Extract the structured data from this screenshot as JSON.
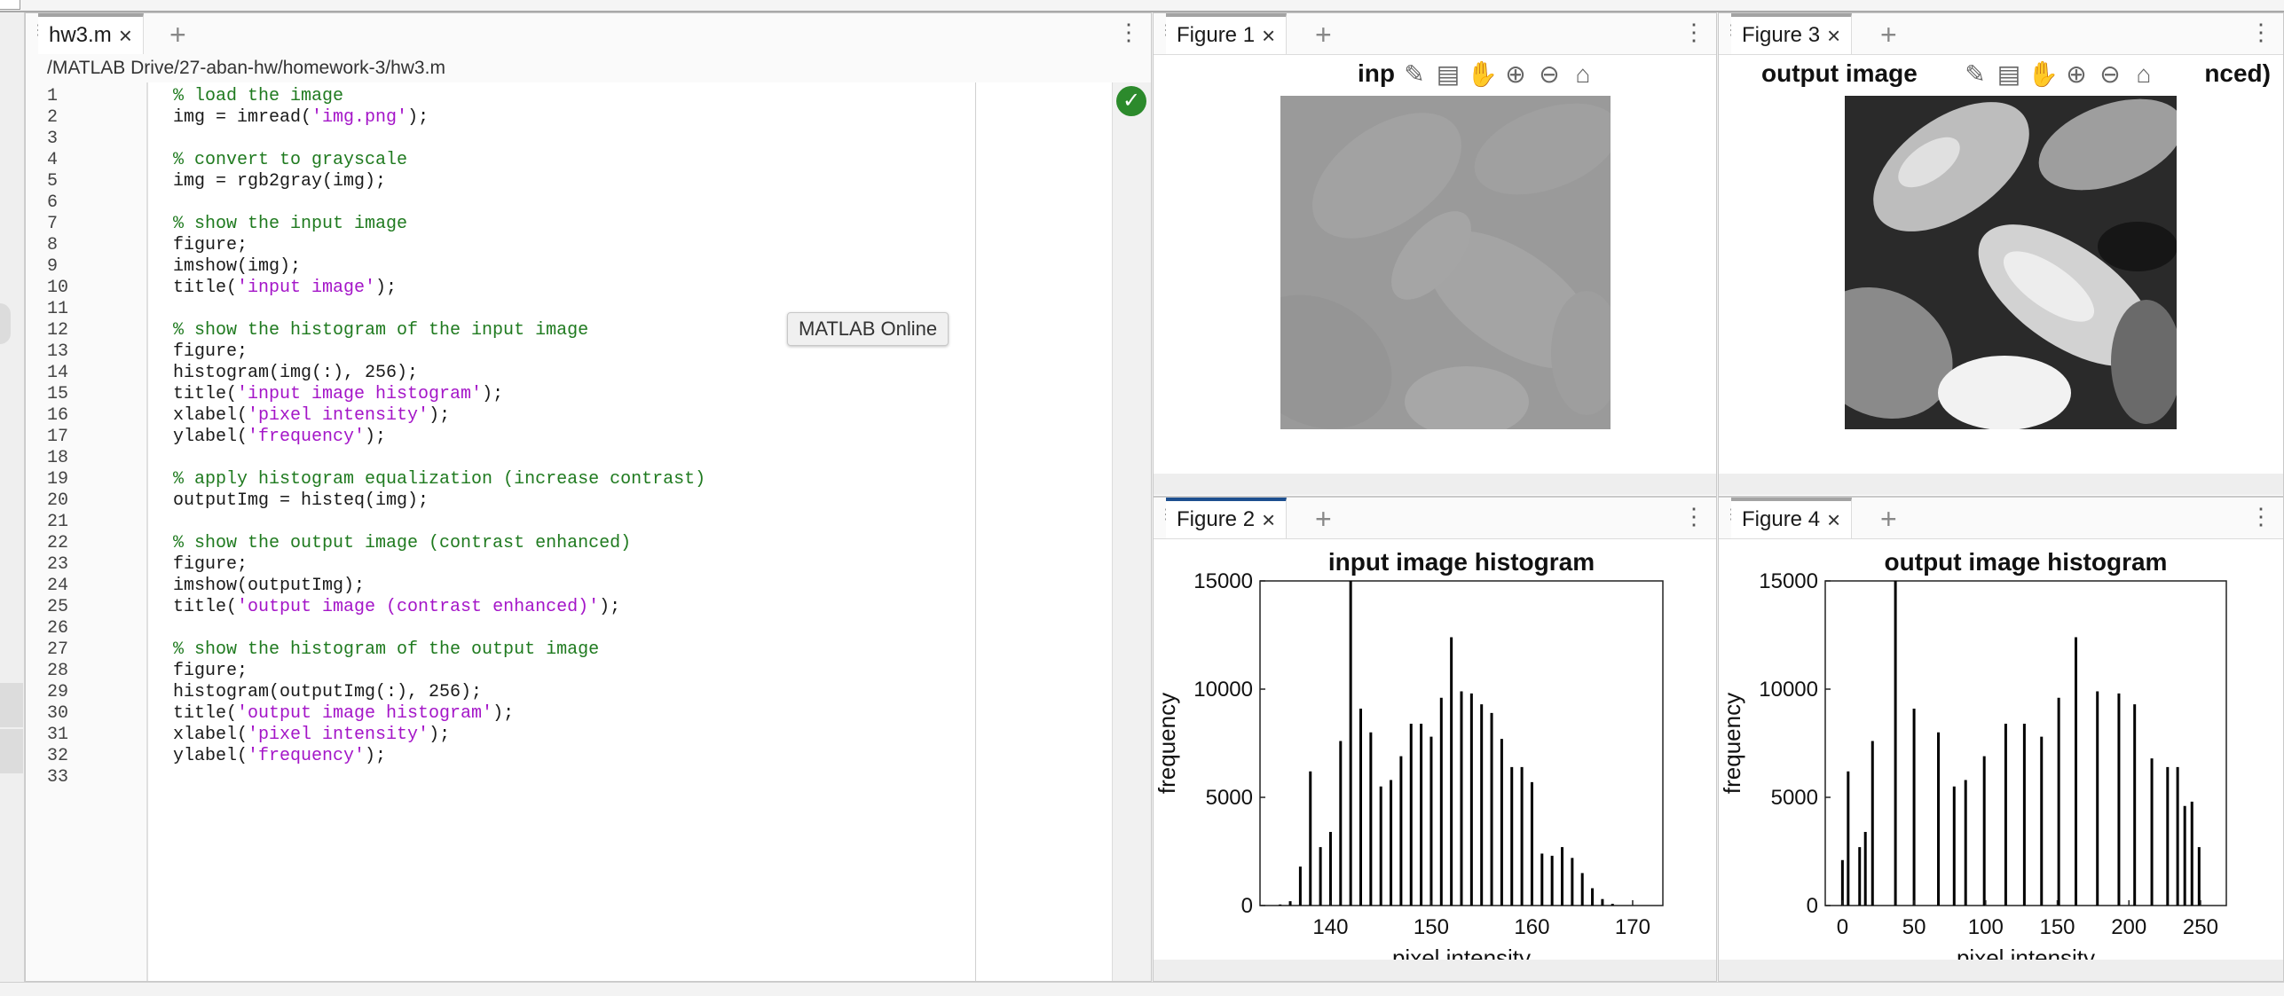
{
  "editor": {
    "tab_label": "hw3.m",
    "path": "/MATLAB Drive/27-aban-hw/homework-3/hw3.m",
    "tooltip": "MATLAB Online",
    "lines": [
      {
        "n": "1",
        "t": "% load the image",
        "k": "cm"
      },
      {
        "n": "2",
        "t": "img = imread(",
        "k": "pl",
        "s": "'img.png'",
        "e": ");"
      },
      {
        "n": "3",
        "t": "",
        "k": "pl"
      },
      {
        "n": "4",
        "t": "% convert to grayscale",
        "k": "cm"
      },
      {
        "n": "5",
        "t": "img = rgb2gray(img);",
        "k": "pl"
      },
      {
        "n": "6",
        "t": "",
        "k": "pl"
      },
      {
        "n": "7",
        "t": "% show the input image",
        "k": "cm"
      },
      {
        "n": "8",
        "t": "figure;",
        "k": "pl"
      },
      {
        "n": "9",
        "t": "imshow(img);",
        "k": "pl"
      },
      {
        "n": "10",
        "t": "title(",
        "k": "pl",
        "s": "'input image'",
        "e": ");"
      },
      {
        "n": "11",
        "t": "",
        "k": "pl"
      },
      {
        "n": "12",
        "t": "% show the histogram of the input image",
        "k": "cm"
      },
      {
        "n": "13",
        "t": "figure;",
        "k": "pl"
      },
      {
        "n": "14",
        "t": "histogram(img(:), 256);",
        "k": "pl"
      },
      {
        "n": "15",
        "t": "title(",
        "k": "pl",
        "s": "'input image histogram'",
        "e": ");"
      },
      {
        "n": "16",
        "t": "xlabel(",
        "k": "pl",
        "s": "'pixel intensity'",
        "e": ");"
      },
      {
        "n": "17",
        "t": "ylabel(",
        "k": "pl",
        "s": "'frequency'",
        "e": ");"
      },
      {
        "n": "18",
        "t": "",
        "k": "pl"
      },
      {
        "n": "19",
        "t": "% apply histogram equalization (increase contrast)",
        "k": "cm"
      },
      {
        "n": "20",
        "t": "outputImg = histeq(img);",
        "k": "pl"
      },
      {
        "n": "21",
        "t": "",
        "k": "pl"
      },
      {
        "n": "22",
        "t": "% show the output image (contrast enhanced)",
        "k": "cm"
      },
      {
        "n": "23",
        "t": "figure;",
        "k": "pl"
      },
      {
        "n": "24",
        "t": "imshow(outputImg);",
        "k": "pl"
      },
      {
        "n": "25",
        "t": "title(",
        "k": "pl",
        "s": "'output image (contrast enhanced)'",
        "e": ");"
      },
      {
        "n": "26",
        "t": "",
        "k": "pl"
      },
      {
        "n": "27",
        "t": "% show the histogram of the output image",
        "k": "cm"
      },
      {
        "n": "28",
        "t": "figure;",
        "k": "pl"
      },
      {
        "n": "29",
        "t": "histogram(outputImg(:), 256);",
        "k": "pl"
      },
      {
        "n": "30",
        "t": "title(",
        "k": "pl",
        "s": "'output image histogram'",
        "e": ");"
      },
      {
        "n": "31",
        "t": "xlabel(",
        "k": "pl",
        "s": "'pixel intensity'",
        "e": ");"
      },
      {
        "n": "32",
        "t": "ylabel(",
        "k": "pl",
        "s": "'frequency'",
        "e": ");"
      },
      {
        "n": "33",
        "t": "",
        "k": "pl"
      }
    ]
  },
  "figures": {
    "fig1": {
      "tab_label": "Figure 1",
      "title_visible": "inp"
    },
    "fig2": {
      "tab_label": "Figure 2"
    },
    "fig3": {
      "tab_label": "Figure 3",
      "title_left": "output image",
      "title_right": "nced)"
    },
    "fig4": {
      "tab_label": "Figure 4"
    }
  },
  "colors": {
    "comment": "#1f7a1f",
    "string": "#a415c8",
    "check": "#2c8a2c",
    "active_tab": "#1d4f8f"
  },
  "chart_data": [
    {
      "type": "bar",
      "title": "input image histogram",
      "xlabel": "pixel intensity",
      "ylabel": "frequency",
      "xlim": [
        133,
        173
      ],
      "ylim": [
        0,
        15000
      ],
      "xticks": [
        "140",
        "150",
        "160",
        "170"
      ],
      "yticks": [
        "0",
        "5000",
        "10000",
        "15000"
      ],
      "x": [
        135,
        136,
        137,
        138,
        139,
        140,
        141,
        142,
        143,
        144,
        145,
        146,
        147,
        148,
        149,
        150,
        151,
        152,
        153,
        154,
        155,
        156,
        157,
        158,
        159,
        160,
        161,
        162,
        163,
        164,
        165,
        166,
        167,
        168
      ],
      "values": [
        50,
        200,
        1800,
        6200,
        2700,
        3400,
        7600,
        15000,
        9100,
        8000,
        5500,
        5800,
        6900,
        8400,
        8400,
        7800,
        9600,
        12400,
        9900,
        9800,
        9300,
        8900,
        7700,
        6400,
        6400,
        5700,
        2400,
        2300,
        2700,
        2200,
        1500,
        800,
        300,
        80
      ]
    },
    {
      "type": "bar",
      "title": "output image histogram",
      "xlabel": "pixel intensity",
      "ylabel": "frequency",
      "xlim": [
        -12,
        268
      ],
      "ylim": [
        0,
        15000
      ],
      "xticks": [
        "0",
        "50",
        "100",
        "150",
        "200",
        "250"
      ],
      "yticks": [
        "0",
        "5000",
        "10000",
        "15000"
      ],
      "x": [
        0,
        4,
        12,
        16,
        21,
        37,
        50,
        67,
        78,
        86,
        99,
        114,
        127,
        139,
        151,
        163,
        178,
        193,
        204,
        216,
        227,
        234,
        239,
        244,
        249
      ],
      "values": [
        2100,
        6200,
        2700,
        3400,
        7600,
        15000,
        9100,
        8000,
        5500,
        5800,
        6900,
        8400,
        8400,
        7800,
        9600,
        12400,
        9900,
        9800,
        9300,
        6800,
        6400,
        6400,
        4600,
        4800,
        2700
      ]
    }
  ]
}
